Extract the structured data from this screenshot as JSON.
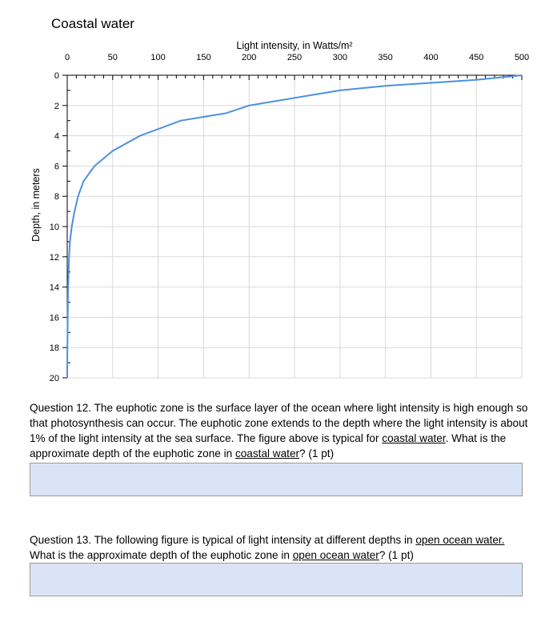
{
  "page_title": "Coastal water",
  "chart_data": {
    "type": "line",
    "title": "Coastal water",
    "xlabel": "Light intensity, in Watts/m²",
    "ylabel": "Depth, in meters",
    "xlim": [
      0,
      500
    ],
    "ylim": [
      0,
      20
    ],
    "y_inverted": true,
    "x_axis_position": "top",
    "grid": true,
    "x_ticks": [
      0,
      50,
      100,
      150,
      200,
      250,
      300,
      350,
      400,
      450,
      500
    ],
    "x_tick_labels": [
      "0",
      "50",
      "100",
      "150",
      "200",
      "250",
      "300",
      "350",
      "400",
      "450",
      "500"
    ],
    "y_ticks": [
      0,
      2,
      4,
      6,
      8,
      10,
      12,
      14,
      16,
      18,
      20
    ],
    "y_tick_labels": [
      "0",
      "2",
      "4",
      "6",
      "8",
      "10",
      "12",
      "14",
      "16",
      "18",
      "20"
    ],
    "line_color": "#4a90e2",
    "series": [
      {
        "x": [
          500,
          450,
          400,
          350,
          300,
          250,
          200,
          175,
          125,
          80,
          50,
          30,
          18,
          12,
          8,
          5,
          3,
          2,
          1.5,
          1,
          0.5,
          0.2,
          0
        ],
        "y": [
          0,
          0.3,
          0.5,
          0.7,
          1.0,
          1.5,
          2.0,
          2.5,
          3.0,
          4.0,
          5.0,
          6.0,
          7.0,
          8.0,
          9.0,
          10.0,
          11.0,
          12.0,
          13.0,
          14.0,
          16.0,
          18.0,
          20.0
        ]
      }
    ]
  },
  "questions": {
    "q12": {
      "prefix": "Question 12.  The euphotic zone is the surface layer of the ocean where light intensity is high enough so that photosynthesis can occur.  The euphotic zone extends to the depth where the light intensity is about 1% of the light intensity at the sea surface.  The figure above is typical for ",
      "u1": "coastal water",
      "mid": ".  What is the approximate depth of the euphotic zone in ",
      "u2": "coastal water",
      "suffix": "?  (1 pt)"
    },
    "q13": {
      "prefix": "Question 13.  The following figure is typical of light intensity at different depths in ",
      "u1": "open ocean water.",
      "mid": "  What is the approximate depth of the euphotic zone in ",
      "u2": "open ocean water",
      "suffix": "?  (1 pt)"
    }
  },
  "colors": {
    "answer_box": "#dbe3f7",
    "curve": "#4a90e2",
    "grid": "#d9d9d9"
  }
}
